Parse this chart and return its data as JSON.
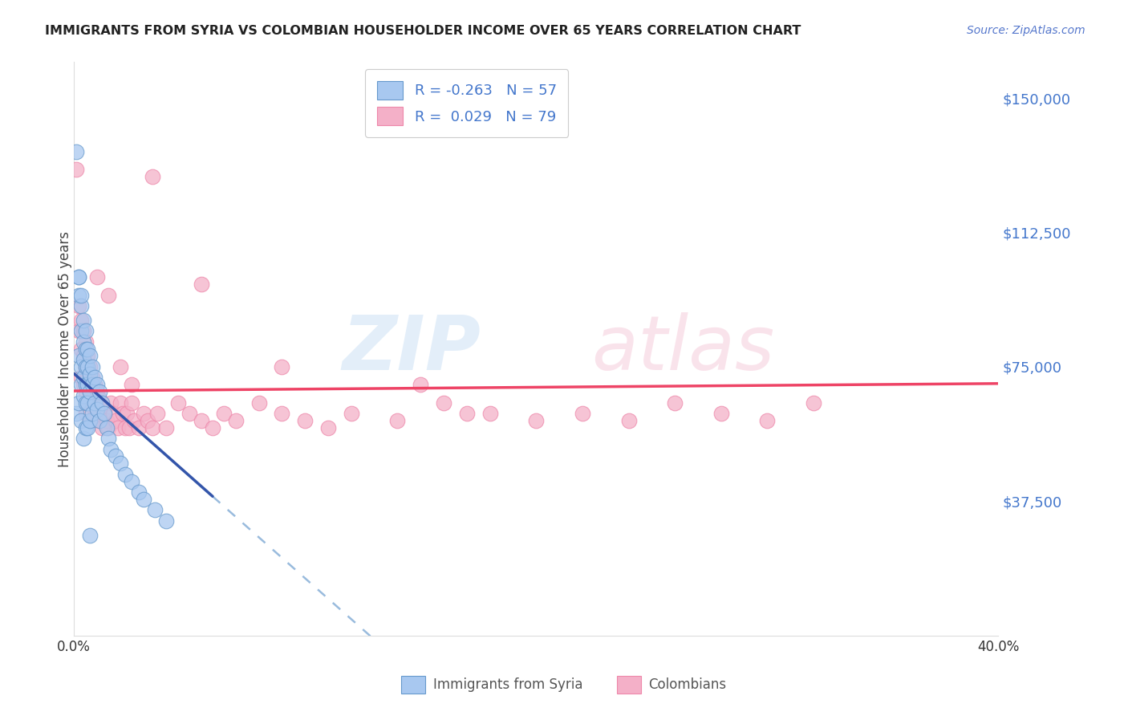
{
  "title": "IMMIGRANTS FROM SYRIA VS COLOMBIAN HOUSEHOLDER INCOME OVER 65 YEARS CORRELATION CHART",
  "source": "Source: ZipAtlas.com",
  "ylabel": "Householder Income Over 65 years",
  "ytick_labels": [
    "$150,000",
    "$112,500",
    "$75,000",
    "$37,500"
  ],
  "ytick_values": [
    150000,
    112500,
    75000,
    37500
  ],
  "xmin": 0.0,
  "xmax": 0.4,
  "ymin": 0,
  "ymax": 160000,
  "xtick_positions": [
    0.0,
    0.1,
    0.2,
    0.3,
    0.4
  ],
  "xtick_labels": [
    "0.0%",
    "",
    "",
    "",
    "40.0%"
  ],
  "legend_syria": "Immigrants from Syria",
  "legend_colombia": "Colombians",
  "R_syria": -0.263,
  "N_syria": 57,
  "R_colombia": 0.029,
  "N_colombia": 79,
  "color_syria": "#a8c8f0",
  "color_colombia": "#f4b0c8",
  "color_syria_edge": "#6699cc",
  "color_colombia_edge": "#ee88aa",
  "color_syria_line": "#3355aa",
  "color_colombia_line": "#ee4466",
  "color_syria_dashed": "#99bbdd",
  "watermark_zip": "ZIP",
  "watermark_atlas": "atlas",
  "background_color": "#ffffff",
  "grid_color": "#dddddd",
  "right_tick_color": "#4477cc",
  "title_color": "#222222",
  "source_color": "#5577cc",
  "syria_x": [
    0.001,
    0.001,
    0.002,
    0.002,
    0.002,
    0.002,
    0.003,
    0.003,
    0.003,
    0.003,
    0.003,
    0.004,
    0.004,
    0.004,
    0.004,
    0.004,
    0.004,
    0.005,
    0.005,
    0.005,
    0.005,
    0.005,
    0.005,
    0.006,
    0.006,
    0.006,
    0.006,
    0.006,
    0.007,
    0.007,
    0.007,
    0.007,
    0.008,
    0.008,
    0.008,
    0.009,
    0.009,
    0.01,
    0.01,
    0.011,
    0.011,
    0.012,
    0.013,
    0.014,
    0.015,
    0.016,
    0.018,
    0.02,
    0.022,
    0.025,
    0.028,
    0.03,
    0.035,
    0.04,
    0.002,
    0.003,
    0.007
  ],
  "syria_y": [
    135000,
    62000,
    100000,
    95000,
    78000,
    65000,
    92000,
    85000,
    75000,
    70000,
    60000,
    88000,
    82000,
    77000,
    72000,
    67000,
    55000,
    85000,
    80000,
    75000,
    70000,
    65000,
    58000,
    80000,
    75000,
    70000,
    65000,
    58000,
    78000,
    73000,
    68000,
    60000,
    75000,
    70000,
    62000,
    72000,
    65000,
    70000,
    63000,
    68000,
    60000,
    65000,
    62000,
    58000,
    55000,
    52000,
    50000,
    48000,
    45000,
    43000,
    40000,
    38000,
    35000,
    32000,
    100000,
    95000,
    28000
  ],
  "colombia_x": [
    0.001,
    0.002,
    0.002,
    0.003,
    0.003,
    0.003,
    0.004,
    0.004,
    0.004,
    0.005,
    0.005,
    0.005,
    0.005,
    0.006,
    0.006,
    0.006,
    0.007,
    0.007,
    0.008,
    0.008,
    0.008,
    0.009,
    0.009,
    0.01,
    0.01,
    0.011,
    0.011,
    0.012,
    0.012,
    0.013,
    0.014,
    0.015,
    0.016,
    0.017,
    0.018,
    0.019,
    0.02,
    0.021,
    0.022,
    0.023,
    0.024,
    0.025,
    0.026,
    0.028,
    0.03,
    0.032,
    0.034,
    0.036,
    0.04,
    0.045,
    0.05,
    0.055,
    0.06,
    0.065,
    0.07,
    0.08,
    0.09,
    0.1,
    0.11,
    0.12,
    0.14,
    0.16,
    0.18,
    0.2,
    0.22,
    0.24,
    0.26,
    0.28,
    0.3,
    0.32,
    0.17,
    0.034,
    0.01,
    0.015,
    0.02,
    0.025,
    0.055,
    0.09,
    0.15
  ],
  "colombia_y": [
    130000,
    92000,
    85000,
    88000,
    80000,
    72000,
    85000,
    78000,
    70000,
    82000,
    75000,
    68000,
    62000,
    78000,
    72000,
    65000,
    75000,
    68000,
    72000,
    65000,
    60000,
    70000,
    63000,
    68000,
    62000,
    66000,
    60000,
    64000,
    58000,
    62000,
    60000,
    58000,
    65000,
    62000,
    60000,
    58000,
    65000,
    62000,
    58000,
    62000,
    58000,
    65000,
    60000,
    58000,
    62000,
    60000,
    58000,
    62000,
    58000,
    65000,
    62000,
    60000,
    58000,
    62000,
    60000,
    65000,
    62000,
    60000,
    58000,
    62000,
    60000,
    65000,
    62000,
    60000,
    62000,
    60000,
    65000,
    62000,
    60000,
    65000,
    62000,
    128000,
    100000,
    95000,
    75000,
    70000,
    98000,
    75000,
    70000
  ]
}
